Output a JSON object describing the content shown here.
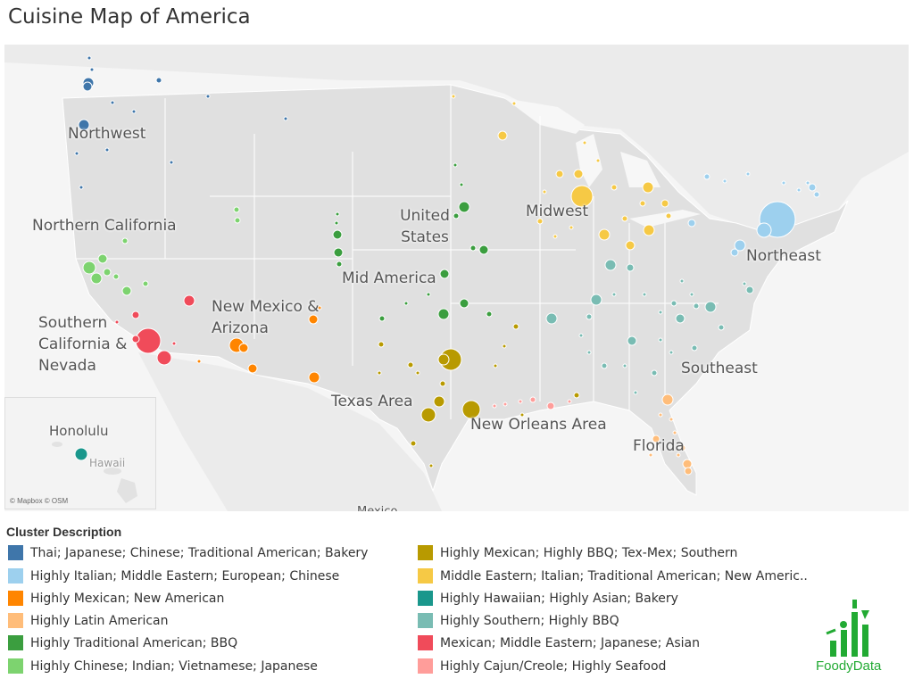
{
  "title": "Cuisine Map of America",
  "map": {
    "attribution": "© Mapbox © OSM",
    "region_labels": [
      "Northwest",
      "Northern California",
      "Southern California & Nevada",
      "New Mexico & Arizona",
      "Mid America",
      "United States",
      "Midwest",
      "Northeast",
      "Southeast",
      "Texas Area",
      "New Orleans Area",
      "Florida",
      "Mexico"
    ],
    "inset": {
      "labels": [
        "Honolulu",
        "Hawaii"
      ]
    }
  },
  "legend": {
    "title": "Cluster Description",
    "items": [
      {
        "label": "Thai; Japanese; Chinese; Traditional American; Bakery",
        "color": "#3f76aa"
      },
      {
        "label": "Highly Italian; Middle Eastern; European; Chinese",
        "color": "#9dd0ee"
      },
      {
        "label": "Highly Mexican; New American",
        "color": "#ff8500"
      },
      {
        "label": "Highly Latin American",
        "color": "#ffbd7a"
      },
      {
        "label": "Highly Traditional American; BBQ",
        "color": "#3b9e3f"
      },
      {
        "label": "Highly Chinese; Indian; Vietnamese; Japanese",
        "color": "#7dd36f"
      },
      {
        "label": "Highly Mexican; Highly BBQ; Tex-Mex; Southern",
        "color": "#b89a00"
      },
      {
        "label": "Middle Eastern; Italian; Traditional American; New Americ..",
        "color": "#f6c945"
      },
      {
        "label": "Highly Hawaiian; Highly Asian; Bakery",
        "color": "#1a978c"
      },
      {
        "label": "Highly Southern; Highly BBQ",
        "color": "#79bcb3"
      },
      {
        "label": "Mexican; Middle Eastern; Japanese; Asian",
        "color": "#f04b5a"
      },
      {
        "label": "Highly Cajun/Creole; Highly Seafood",
        "color": "#ff9d9a"
      }
    ]
  },
  "logo": {
    "text": "FoodyData",
    "color": "#22aa33"
  }
}
